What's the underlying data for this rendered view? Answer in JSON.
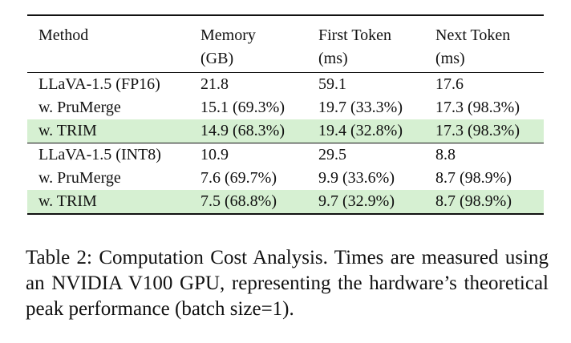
{
  "table": {
    "headers": [
      {
        "line1": "Method",
        "line2": ""
      },
      {
        "line1": "Memory",
        "line2": "(GB)"
      },
      {
        "line1": "First Token",
        "line2": "(ms)"
      },
      {
        "line1": "Next Token",
        "line2": "(ms)"
      }
    ],
    "groups": [
      {
        "rows": [
          {
            "highlight": false,
            "cells": [
              "LLaVA-1.5 (FP16)",
              "21.8",
              "59.1",
              "17.6"
            ]
          },
          {
            "highlight": false,
            "cells": [
              "w. PruMerge",
              "15.1 (69.3%)",
              "19.7 (33.3%)",
              "17.3 (98.3%)"
            ]
          },
          {
            "highlight": true,
            "cells": [
              "w. TRIM",
              "14.9 (68.3%)",
              "19.4 (32.8%)",
              "17.3 (98.3%)"
            ]
          }
        ]
      },
      {
        "rows": [
          {
            "highlight": false,
            "cells": [
              "LLaVA-1.5 (INT8)",
              "10.9",
              "29.5",
              "8.8"
            ]
          },
          {
            "highlight": false,
            "cells": [
              "w. PruMerge",
              "7.6 (69.7%)",
              "9.9 (33.6%)",
              "8.7 (98.9%)"
            ]
          },
          {
            "highlight": true,
            "cells": [
              "w. TRIM",
              "7.5 (68.8%)",
              "9.7 (32.9%)",
              "8.7 (98.9%)"
            ]
          }
        ]
      }
    ],
    "highlight_color": "#d6f0d2"
  },
  "caption": {
    "text": "Table 2: Computation Cost Analysis. Times are measured using an NVIDIA V100 GPU, representing the hardware’s theoretical peak performance (batch size=1)."
  }
}
